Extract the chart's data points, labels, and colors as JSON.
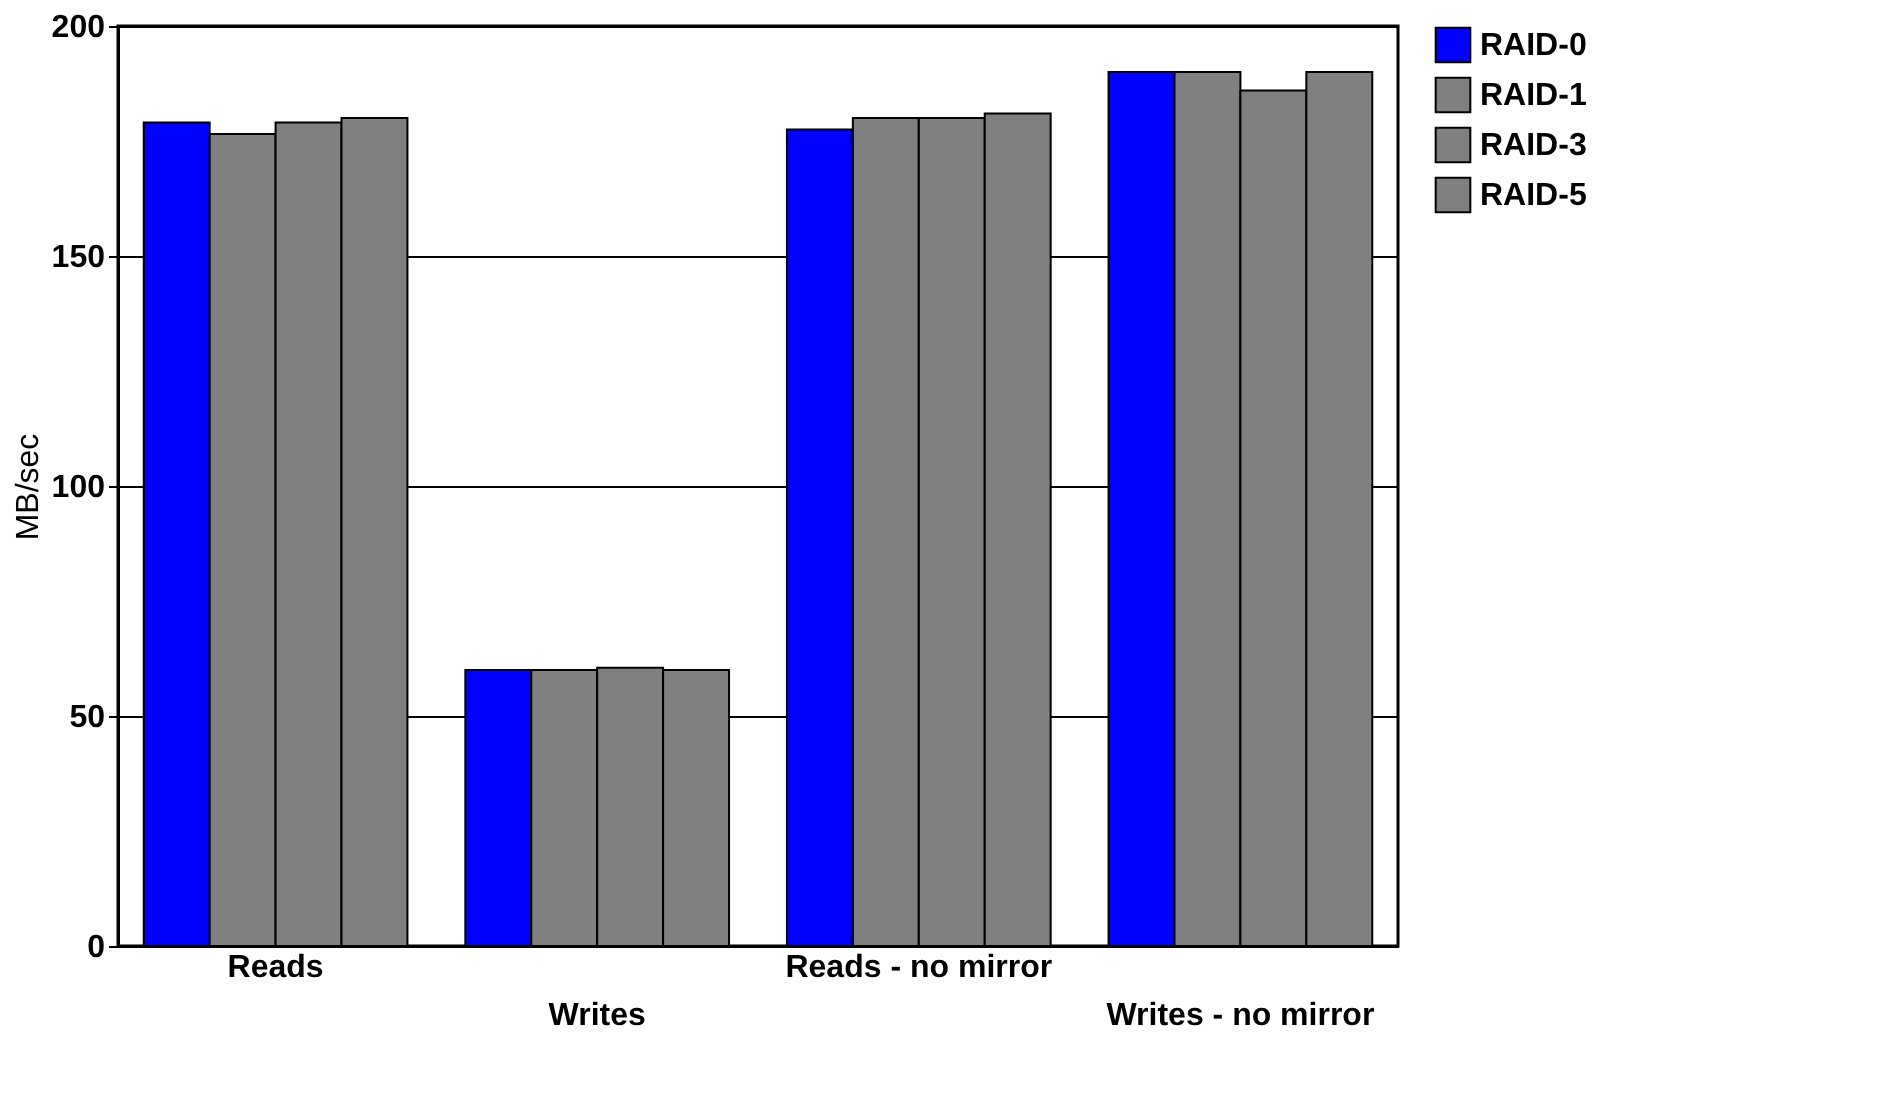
{
  "chart_data": {
    "type": "bar",
    "ylabel": "MB/sec",
    "categories": [
      "Reads",
      "Writes",
      "Reads - no mirror",
      "Writes - no mirror"
    ],
    "series": [
      {
        "name": "RAID-0",
        "color": "#0000ff",
        "values": [
          179,
          60,
          177.5,
          190
        ]
      },
      {
        "name": "RAID-1",
        "color": "#808080",
        "values": [
          176.5,
          60,
          180,
          190
        ]
      },
      {
        "name": "RAID-3",
        "color": "#808080",
        "values": [
          179,
          60.5,
          180,
          186
        ]
      },
      {
        "name": "RAID-5",
        "color": "#808080",
        "values": [
          180,
          60,
          181,
          190
        ]
      }
    ],
    "ylim": [
      0,
      200
    ],
    "yticks": [
      0,
      50,
      100,
      150,
      200
    ],
    "grid": "y",
    "legend": "right"
  }
}
